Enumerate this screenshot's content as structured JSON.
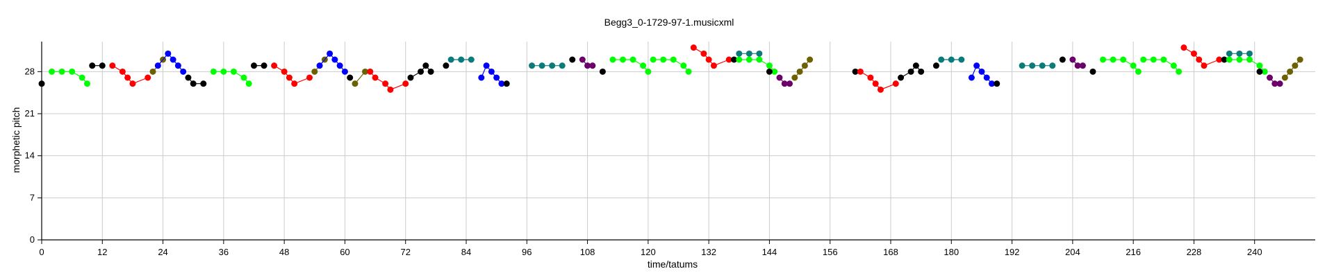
{
  "chart_data": {
    "type": "scatter",
    "title": "Begg3_0-1729-97-1.musicxml",
    "xlabel": "time/tatums",
    "ylabel": "morphetic pitch",
    "xlim": [
      0,
      252
    ],
    "ylim": [
      0,
      33
    ],
    "xticks": [
      0,
      12,
      24,
      36,
      48,
      60,
      72,
      84,
      96,
      108,
      120,
      132,
      144,
      156,
      168,
      180,
      192,
      204,
      216,
      228,
      240
    ],
    "yticks": [
      0,
      7,
      14,
      21,
      28
    ],
    "grid": true,
    "colors": {
      "k": "#000000",
      "g": "#00ff00",
      "r": "#ff0000",
      "b": "#0000ff",
      "o": "#6b6100",
      "t": "#0a7a7a",
      "p": "#6b006b"
    },
    "segments": [
      {
        "color": "k",
        "points": [
          [
            0,
            26
          ]
        ]
      },
      {
        "color": "g",
        "points": [
          [
            2,
            28
          ],
          [
            4,
            28
          ],
          [
            6,
            28
          ],
          [
            8,
            27
          ],
          [
            9,
            26
          ]
        ]
      },
      {
        "color": "k",
        "points": [
          [
            10,
            29
          ],
          [
            12,
            29
          ]
        ]
      },
      {
        "color": "r",
        "points": [
          [
            14,
            29
          ],
          [
            16,
            28
          ],
          [
            17,
            27
          ],
          [
            18,
            26
          ],
          [
            21,
            27
          ]
        ]
      },
      {
        "color": "o",
        "points": [
          [
            22,
            28
          ],
          [
            24,
            30
          ]
        ]
      },
      {
        "color": "b",
        "points": [
          [
            23,
            29
          ],
          [
            25,
            31
          ],
          [
            26,
            30
          ],
          [
            27,
            29
          ],
          [
            28,
            28
          ]
        ]
      },
      {
        "color": "k",
        "points": [
          [
            29,
            27
          ],
          [
            30,
            26
          ],
          [
            32,
            26
          ]
        ]
      },
      {
        "color": "g",
        "points": [
          [
            34,
            28
          ],
          [
            36,
            28
          ],
          [
            38,
            28
          ],
          [
            40,
            27
          ],
          [
            41,
            26
          ]
        ]
      },
      {
        "color": "k",
        "points": [
          [
            42,
            29
          ],
          [
            44,
            29
          ]
        ]
      },
      {
        "color": "r",
        "points": [
          [
            46,
            29
          ],
          [
            48,
            28
          ],
          [
            49,
            27
          ],
          [
            50,
            26
          ],
          [
            53,
            27
          ]
        ]
      },
      {
        "color": "o",
        "points": [
          [
            54,
            28
          ],
          [
            56,
            30
          ]
        ]
      },
      {
        "color": "b",
        "points": [
          [
            55,
            29
          ],
          [
            57,
            31
          ],
          [
            58,
            30
          ],
          [
            59,
            29
          ],
          [
            60,
            28
          ]
        ]
      },
      {
        "color": "k",
        "points": [
          [
            61,
            27
          ]
        ]
      },
      {
        "color": "o",
        "points": [
          [
            62,
            26
          ],
          [
            64,
            28
          ]
        ]
      },
      {
        "color": "r",
        "points": [
          [
            65,
            28
          ],
          [
            66,
            27
          ],
          [
            68,
            26
          ],
          [
            69,
            25
          ],
          [
            72,
            26
          ]
        ]
      },
      {
        "color": "k",
        "points": [
          [
            73,
            27
          ],
          [
            75,
            28
          ],
          [
            76,
            29
          ],
          [
            77,
            28
          ]
        ]
      },
      {
        "color": "k",
        "points": [
          [
            80,
            29
          ]
        ]
      },
      {
        "color": "t",
        "points": [
          [
            81,
            30
          ],
          [
            83,
            30
          ],
          [
            85,
            30
          ]
        ]
      },
      {
        "color": "b",
        "points": [
          [
            87,
            27
          ],
          [
            88,
            29
          ],
          [
            89,
            28
          ],
          [
            90,
            27
          ],
          [
            91,
            26
          ]
        ]
      },
      {
        "color": "k",
        "points": [
          [
            92,
            26
          ]
        ]
      },
      {
        "color": "t",
        "points": [
          [
            97,
            29
          ],
          [
            99,
            29
          ],
          [
            101,
            29
          ],
          [
            103,
            29
          ]
        ]
      },
      {
        "color": "k",
        "points": [
          [
            105,
            30
          ]
        ]
      },
      {
        "color": "p",
        "points": [
          [
            107,
            30
          ],
          [
            108,
            29
          ],
          [
            109,
            29
          ]
        ]
      },
      {
        "color": "k",
        "points": [
          [
            111,
            28
          ]
        ]
      },
      {
        "color": "g",
        "points": [
          [
            113,
            30
          ],
          [
            115,
            30
          ],
          [
            117,
            30
          ],
          [
            119,
            29
          ],
          [
            120,
            28
          ]
        ]
      },
      {
        "color": "g",
        "points": [
          [
            121,
            30
          ],
          [
            123,
            30
          ],
          [
            125,
            30
          ],
          [
            127,
            29
          ],
          [
            128,
            28
          ]
        ]
      },
      {
        "color": "r",
        "points": [
          [
            129,
            32
          ],
          [
            131,
            31
          ],
          [
            132,
            30
          ],
          [
            133,
            29
          ],
          [
            136,
            30
          ]
        ]
      },
      {
        "color": "k",
        "points": [
          [
            137,
            30
          ]
        ]
      },
      {
        "color": "t",
        "points": [
          [
            138,
            31
          ],
          [
            140,
            31
          ],
          [
            142,
            31
          ]
        ]
      },
      {
        "color": "g",
        "points": [
          [
            138,
            30
          ],
          [
            140,
            30
          ],
          [
            142,
            30
          ],
          [
            144,
            29
          ],
          [
            145,
            28
          ]
        ]
      },
      {
        "color": "k",
        "points": [
          [
            144,
            28
          ]
        ]
      },
      {
        "color": "p",
        "points": [
          [
            146,
            27
          ],
          [
            147,
            26
          ],
          [
            148,
            26
          ]
        ]
      },
      {
        "color": "o",
        "points": [
          [
            149,
            27
          ],
          [
            150,
            28
          ],
          [
            151,
            29
          ],
          [
            152,
            30
          ]
        ]
      },
      {
        "color": "k",
        "points": [
          [
            161,
            28
          ]
        ]
      },
      {
        "color": "r",
        "points": [
          [
            162,
            28
          ],
          [
            164,
            27
          ],
          [
            165,
            26
          ],
          [
            166,
            25
          ],
          [
            169,
            26
          ]
        ]
      },
      {
        "color": "k",
        "points": [
          [
            170,
            27
          ],
          [
            172,
            28
          ],
          [
            173,
            29
          ],
          [
            174,
            28
          ]
        ]
      },
      {
        "color": "k",
        "points": [
          [
            177,
            29
          ]
        ]
      },
      {
        "color": "t",
        "points": [
          [
            178,
            30
          ],
          [
            180,
            30
          ],
          [
            182,
            30
          ]
        ]
      },
      {
        "color": "b",
        "points": [
          [
            184,
            27
          ],
          [
            185,
            29
          ],
          [
            186,
            28
          ],
          [
            187,
            27
          ],
          [
            188,
            26
          ]
        ]
      },
      {
        "color": "k",
        "points": [
          [
            189,
            26
          ]
        ]
      },
      {
        "color": "t",
        "points": [
          [
            194,
            29
          ],
          [
            196,
            29
          ],
          [
            198,
            29
          ],
          [
            200,
            29
          ]
        ]
      },
      {
        "color": "k",
        "points": [
          [
            202,
            30
          ]
        ]
      },
      {
        "color": "p",
        "points": [
          [
            204,
            30
          ],
          [
            205,
            29
          ],
          [
            206,
            29
          ]
        ]
      },
      {
        "color": "k",
        "points": [
          [
            208,
            28
          ]
        ]
      },
      {
        "color": "g",
        "points": [
          [
            210,
            30
          ],
          [
            212,
            30
          ],
          [
            214,
            30
          ],
          [
            216,
            29
          ],
          [
            217,
            28
          ]
        ]
      },
      {
        "color": "g",
        "points": [
          [
            218,
            30
          ],
          [
            220,
            30
          ],
          [
            222,
            30
          ],
          [
            224,
            29
          ],
          [
            225,
            28
          ]
        ]
      },
      {
        "color": "r",
        "points": [
          [
            226,
            32
          ],
          [
            228,
            31
          ],
          [
            229,
            30
          ],
          [
            230,
            29
          ],
          [
            233,
            30
          ]
        ]
      },
      {
        "color": "k",
        "points": [
          [
            234,
            30
          ]
        ]
      },
      {
        "color": "t",
        "points": [
          [
            235,
            31
          ],
          [
            237,
            31
          ],
          [
            239,
            31
          ]
        ]
      },
      {
        "color": "g",
        "points": [
          [
            235,
            30
          ],
          [
            237,
            30
          ],
          [
            239,
            30
          ],
          [
            241,
            29
          ],
          [
            242,
            28
          ]
        ]
      },
      {
        "color": "k",
        "points": [
          [
            241,
            28
          ]
        ]
      },
      {
        "color": "p",
        "points": [
          [
            243,
            27
          ],
          [
            244,
            26
          ],
          [
            245,
            26
          ]
        ]
      },
      {
        "color": "o",
        "points": [
          [
            246,
            27
          ],
          [
            247,
            28
          ],
          [
            248,
            29
          ],
          [
            249,
            30
          ]
        ]
      }
    ]
  }
}
